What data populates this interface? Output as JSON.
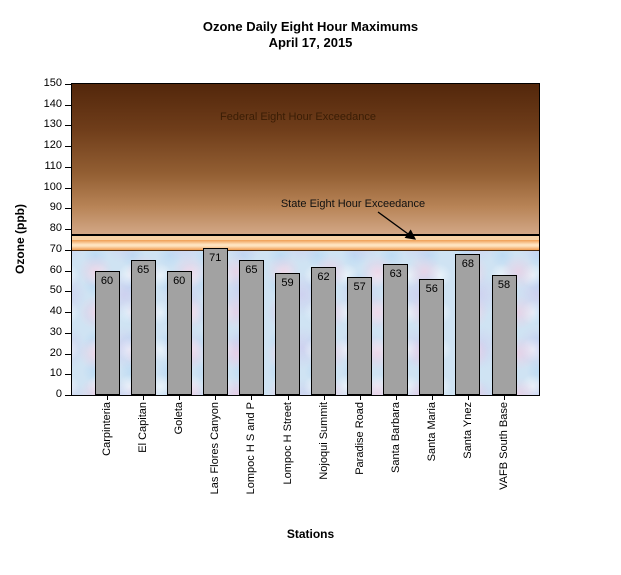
{
  "chart_data": {
    "type": "bar",
    "title": "Ozone Daily Eight Hour Maximums",
    "subtitle": "April 17, 2015",
    "xlabel": "Stations",
    "ylabel": "Ozone (ppb)",
    "ylim": [
      0,
      150
    ],
    "ytick_step": 10,
    "yticks": [
      0,
      10,
      20,
      30,
      40,
      50,
      60,
      70,
      80,
      90,
      100,
      110,
      120,
      130,
      140,
      150
    ],
    "categories": [
      "Carpinteria",
      "El Capitan",
      "Goleta",
      "Las Flores Canyon",
      "Lompoc H S and P",
      "Lompoc H Street",
      "Nojoqui Summit",
      "Paradise Road",
      "Santa Barbara",
      "Santa Maria",
      "Santa Ynez",
      "VAFB South Base"
    ],
    "values": [
      60,
      65,
      60,
      71,
      65,
      59,
      62,
      57,
      63,
      56,
      68,
      58
    ],
    "data_labels": true,
    "grid": false,
    "legend": "none",
    "reference_zones": {
      "federal_exceedance_line_ppb": 75,
      "state_exceedance_band_ppb": [
        70,
        75
      ],
      "federal_label": "Federal Eight Hour Exceedance",
      "state_label": "State Eight Hour Exceedance"
    },
    "colors": {
      "bar_fill": "#a2a2a2",
      "bar_border": "#000000",
      "federal_zone_gradient": [
        "#53270b",
        "#6f3d1a",
        "#935f33",
        "#b88457",
        "#d2a786"
      ],
      "state_band_gradient": [
        "#f09d52",
        "#fee3c0",
        "#fee3c0",
        "#f09d52"
      ],
      "below_standard_fill": "#cfe3f3",
      "federal_text": "#3a1d05",
      "arrow": "#000000"
    }
  }
}
